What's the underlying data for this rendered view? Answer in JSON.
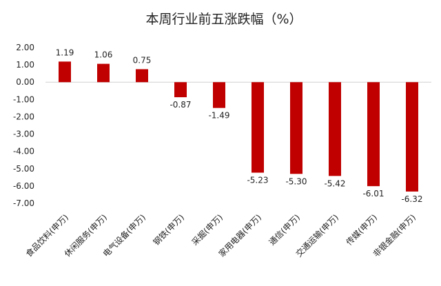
{
  "chart_data": {
    "type": "bar",
    "title": "本周行业前五涨跌幅（%）",
    "categories": [
      "食品饮料(申万)",
      "休闲服务(申万)",
      "电气设备(申万)",
      "钢铁(申万)",
      "采掘(申万)",
      "家用电器(申万)",
      "通信(申万)",
      "交通运输(申万)",
      "传媒(申万)",
      "非银金融(申万)"
    ],
    "values": [
      1.19,
      1.06,
      0.75,
      -0.87,
      -1.49,
      -5.23,
      -5.3,
      -5.42,
      -6.01,
      -6.32
    ],
    "value_labels": [
      "1.19",
      "1.06",
      "0.75",
      "-0.87",
      "-1.49",
      "-5.23",
      "-5.30",
      "-5.42",
      "-6.01",
      "-6.32"
    ],
    "yticks": [
      "2.00",
      "1.00",
      "0.00",
      "-1.00",
      "-2.00",
      "-3.00",
      "-4.00",
      "-5.00",
      "-6.00",
      "-7.00"
    ],
    "ylim": [
      -7,
      2
    ],
    "xlabel": "",
    "ylabel": "",
    "bar_color": "#C00000",
    "grid": false,
    "legend": "none"
  }
}
